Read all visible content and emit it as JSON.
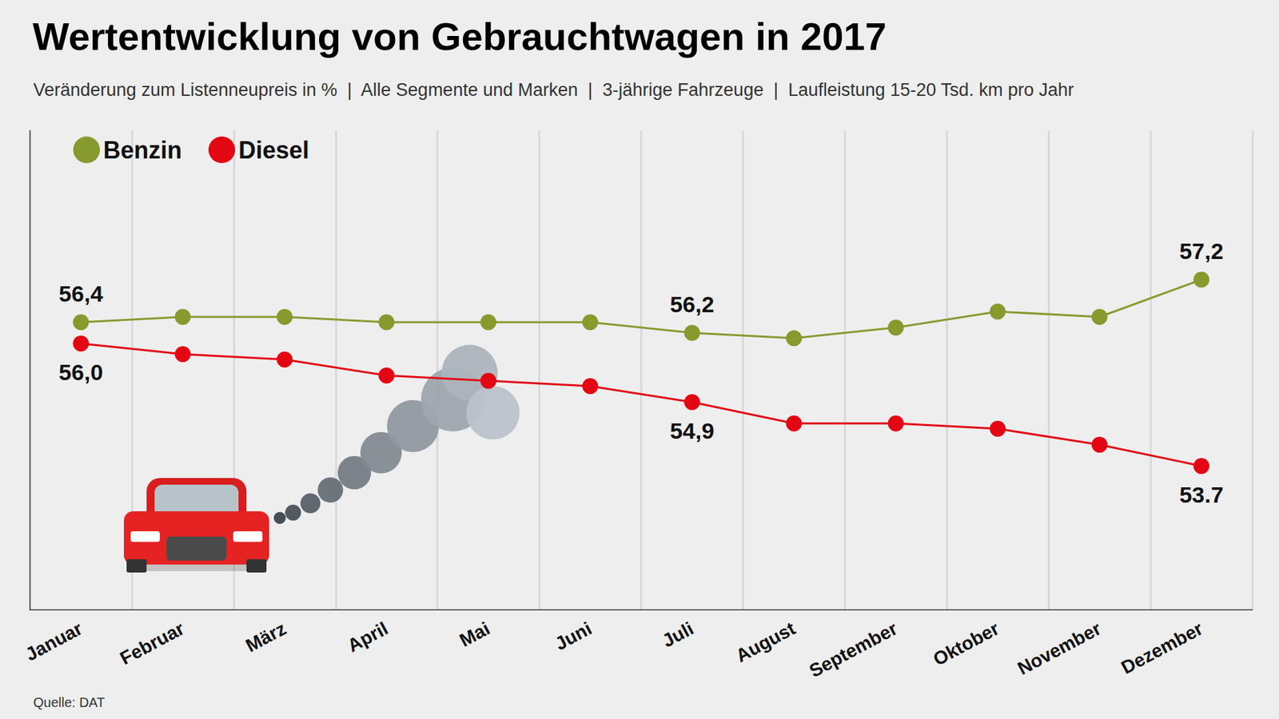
{
  "chart_data": {
    "type": "line",
    "title": "Wertentwicklung von Gebrauchtwagen in 2017",
    "subtitle": "Veränderung zum Listenneupreis in %  |  Alle Segmente und Marken  |  3-jährige Fahrzeuge  |  Laufleistung 15-20 Tsd. km pro Jahr",
    "source": "Quelle: DAT",
    "categories": [
      "Januar",
      "Februar",
      "März",
      "April",
      "Mai",
      "Juni",
      "Juli",
      "August",
      "September",
      "Oktober",
      "November",
      "Dezember"
    ],
    "series": [
      {
        "name": "Benzin",
        "color": "#879a2e",
        "values": [
          56.4,
          56.5,
          56.5,
          56.4,
          56.4,
          56.4,
          56.2,
          56.1,
          56.3,
          56.6,
          56.5,
          57.2
        ],
        "value_labels": [
          "56,4",
          null,
          null,
          null,
          null,
          null,
          "56,2",
          null,
          null,
          null,
          null,
          "57,2"
        ]
      },
      {
        "name": "Diesel",
        "color": "#e30613",
        "values": [
          56.0,
          55.8,
          55.7,
          55.4,
          55.3,
          55.2,
          54.9,
          54.5,
          54.5,
          54.4,
          54.1,
          53.7
        ],
        "value_labels": [
          "56,0",
          null,
          null,
          null,
          null,
          null,
          "54,9",
          null,
          null,
          null,
          null,
          "53.7"
        ]
      }
    ],
    "ylim": [
      51,
      60
    ],
    "grid": true,
    "legend": "upper left",
    "data_labels": true,
    "tick_labels": "x",
    "marker": "circle"
  }
}
